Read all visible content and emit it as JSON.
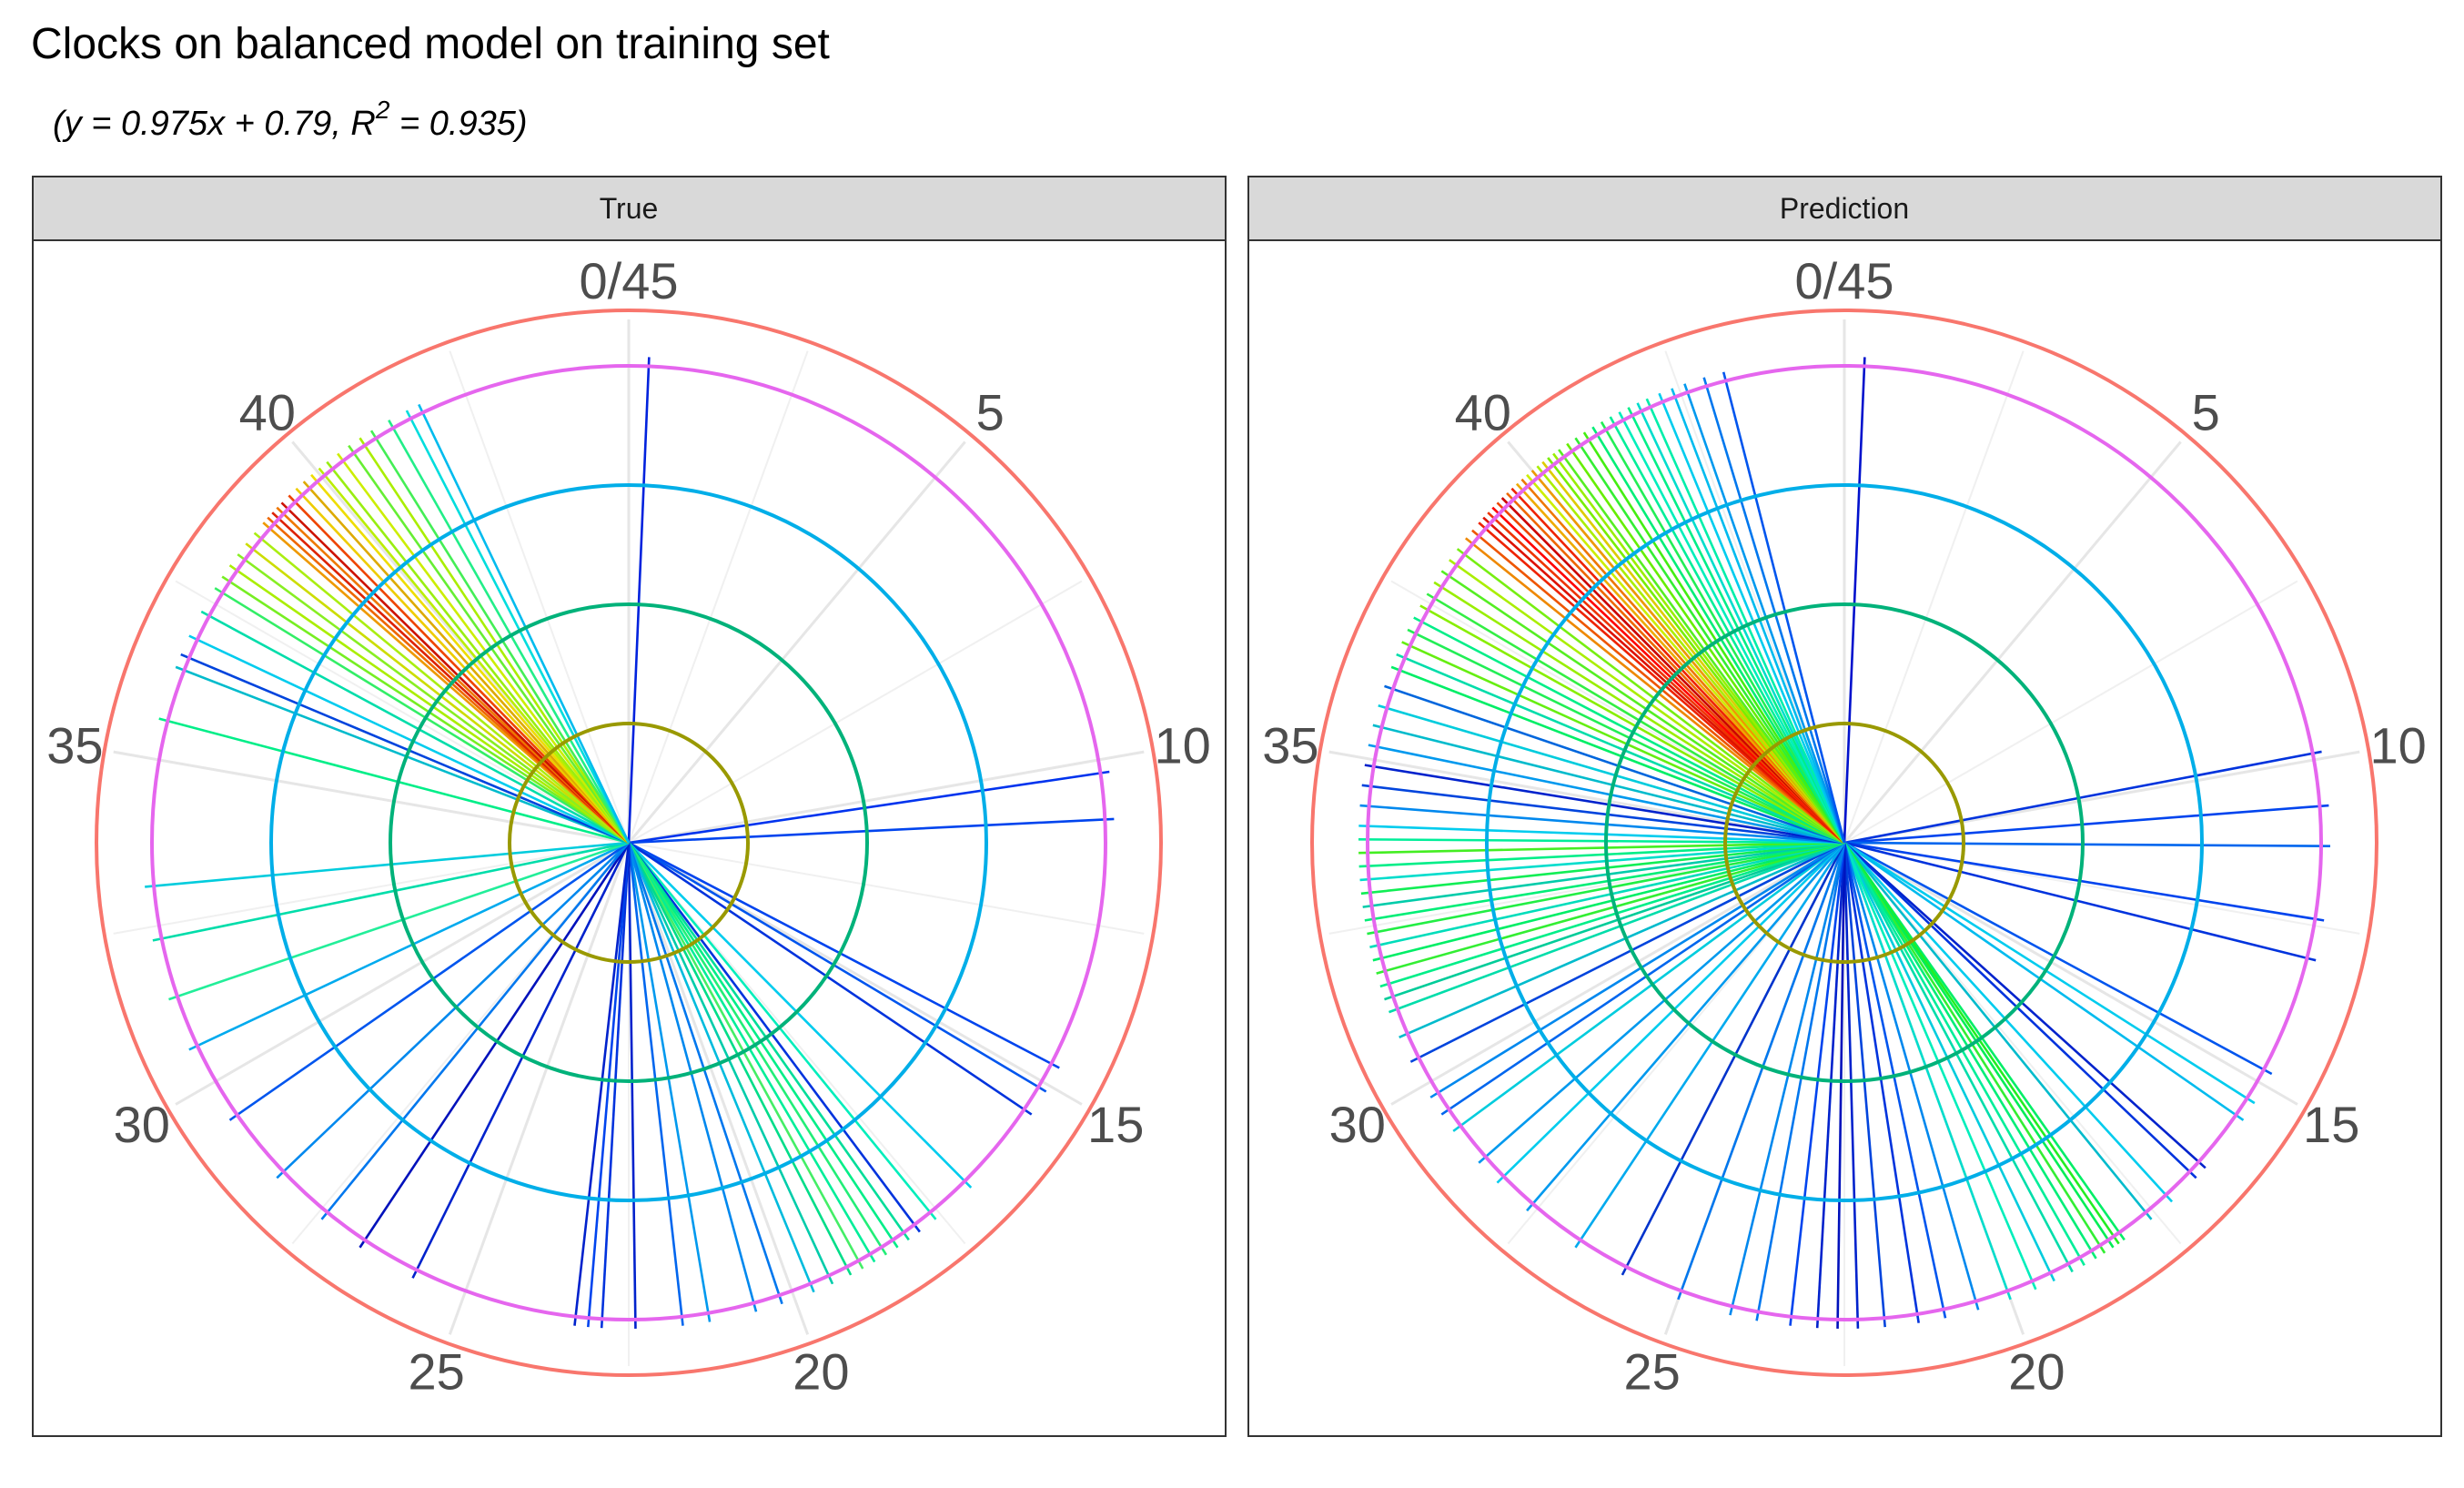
{
  "chart_data": {
    "type": "polar-line",
    "title": "Clocks on balanced model on training set",
    "subtitle": {
      "prefix": "(y = 0.975x + 0.79, R",
      "sup": "2",
      "suffix": " = 0.935)"
    },
    "theta_range": [
      0,
      45
    ],
    "theta_ticks": [
      "0/45",
      "5",
      "10",
      "15",
      "20",
      "25",
      "30",
      "35",
      "40"
    ],
    "ring_colors": [
      "#999900",
      "#00b27a",
      "#00aee8",
      "#e566ee",
      "#f8766d"
    ],
    "panels": [
      {
        "label": "True",
        "rays": [
          {
            "t": 0.3,
            "r": 4,
            "c": "#0022dd"
          },
          {
            "t": 10.2,
            "r": 4,
            "c": "#0033ee"
          },
          {
            "t": 10.9,
            "r": 4,
            "c": "#0044ee"
          },
          {
            "t": 14.7,
            "r": 4,
            "c": "#0044ee"
          },
          {
            "t": 15.1,
            "r": 4,
            "c": "#0055ee"
          },
          {
            "t": 15.5,
            "r": 4,
            "c": "#0033dd"
          },
          {
            "t": 16.9,
            "r": 4,
            "c": "#00ccee"
          },
          {
            "t": 17.6,
            "r": 4,
            "c": "#00eebb"
          },
          {
            "t": 17.9,
            "r": 4,
            "c": "#0033dd"
          },
          {
            "t": 18.1,
            "r": 4,
            "c": "#00dd99"
          },
          {
            "t": 18.3,
            "r": 4,
            "c": "#00ee88"
          },
          {
            "t": 18.5,
            "r": 4,
            "c": "#22ee77"
          },
          {
            "t": 18.7,
            "r": 4,
            "c": "#00ee99"
          },
          {
            "t": 18.9,
            "r": 4,
            "c": "#44ee66"
          },
          {
            "t": 19.1,
            "r": 4,
            "c": "#00dd88"
          },
          {
            "t": 19.4,
            "r": 4,
            "c": "#00ccaa"
          },
          {
            "t": 19.7,
            "r": 4,
            "c": "#00bbdd"
          },
          {
            "t": 20.2,
            "r": 4,
            "c": "#0077ee"
          },
          {
            "t": 20.6,
            "r": 4,
            "c": "#0088ee"
          },
          {
            "t": 21.3,
            "r": 4,
            "c": "#0099ee"
          },
          {
            "t": 21.7,
            "r": 4,
            "c": "#0066ee"
          },
          {
            "t": 22.4,
            "r": 4,
            "c": "#0022cc"
          },
          {
            "t": 22.9,
            "r": 4,
            "c": "#0033dd"
          },
          {
            "t": 23.1,
            "r": 4,
            "c": "#0044ee"
          },
          {
            "t": 23.3,
            "r": 4,
            "c": "#0022cc"
          },
          {
            "t": 25.8,
            "r": 4,
            "c": "#0022cc"
          },
          {
            "t": 26.7,
            "r": 4,
            "c": "#0011bb"
          },
          {
            "t": 27.4,
            "r": 4,
            "c": "#0077ee"
          },
          {
            "t": 28.3,
            "r": 4,
            "c": "#0088ee"
          },
          {
            "t": 29.4,
            "r": 4,
            "c": "#0055ee"
          },
          {
            "t": 30.6,
            "r": 4,
            "c": "#00aaee"
          },
          {
            "t": 31.4,
            "r": 4,
            "c": "#22ee99"
          },
          {
            "t": 32.3,
            "r": 4,
            "c": "#00ddaa"
          },
          {
            "t": 33.1,
            "r": 4,
            "c": "#00ccdd"
          },
          {
            "t": 35.6,
            "r": 4,
            "c": "#00ee88"
          },
          {
            "t": 36.4,
            "r": 4,
            "c": "#00bbcc"
          },
          {
            "t": 36.6,
            "r": 4,
            "c": "#0044dd"
          },
          {
            "t": 36.9,
            "r": 4,
            "c": "#00ccee"
          },
          {
            "t": 37.3,
            "r": 4,
            "c": "#00ddaa"
          },
          {
            "t": 37.7,
            "r": 4,
            "c": "#33ee66"
          },
          {
            "t": 37.9,
            "r": 4,
            "c": "#77ee22"
          },
          {
            "t": 38.1,
            "r": 4,
            "c": "#aaee00"
          },
          {
            "t": 38.3,
            "r": 4,
            "c": "#88ee22"
          },
          {
            "t": 38.5,
            "r": 4,
            "c": "#ccdd00"
          },
          {
            "t": 38.7,
            "r": 4,
            "c": "#aaee11"
          },
          {
            "t": 38.9,
            "r": 4,
            "c": "#ee9900"
          },
          {
            "t": 39.0,
            "r": 4,
            "c": "#ee6600"
          },
          {
            "t": 39.1,
            "r": 4,
            "c": "#dd2200"
          },
          {
            "t": 39.2,
            "r": 4,
            "c": "#ee7700"
          },
          {
            "t": 39.3,
            "r": 4,
            "c": "#cc1100"
          },
          {
            "t": 39.45,
            "r": 4,
            "c": "#ee4400"
          },
          {
            "t": 39.6,
            "r": 4,
            "c": "#eecc00"
          },
          {
            "t": 39.75,
            "r": 4,
            "c": "#ddaa00"
          },
          {
            "t": 39.9,
            "r": 4,
            "c": "#eedd00"
          },
          {
            "t": 40.05,
            "r": 4,
            "c": "#bbee00"
          },
          {
            "t": 40.2,
            "r": 4,
            "c": "#99ee11"
          },
          {
            "t": 40.4,
            "r": 4,
            "c": "#ccee00"
          },
          {
            "t": 40.6,
            "r": 4,
            "c": "#66ee33"
          },
          {
            "t": 40.8,
            "r": 4,
            "c": "#aaee00"
          },
          {
            "t": 41.0,
            "r": 4,
            "c": "#44ee55"
          },
          {
            "t": 41.3,
            "r": 4,
            "c": "#22ee88"
          },
          {
            "t": 41.6,
            "r": 4,
            "c": "#00dddd"
          },
          {
            "t": 41.8,
            "r": 4,
            "c": "#00bbee"
          }
        ]
      },
      {
        "label": "Prediction",
        "rays": [
          {
            "t": 0.3,
            "r": 4,
            "c": "#0011cc"
          },
          {
            "t": 9.9,
            "r": 4,
            "c": "#0033dd"
          },
          {
            "t": 10.7,
            "r": 4,
            "c": "#0044ee"
          },
          {
            "t": 11.3,
            "r": 4,
            "c": "#0066ee"
          },
          {
            "t": 12.4,
            "r": 4,
            "c": "#0044ee"
          },
          {
            "t": 13.0,
            "r": 4,
            "c": "#0033dd"
          },
          {
            "t": 14.8,
            "r": 4,
            "c": "#0055ee"
          },
          {
            "t": 15.3,
            "r": 4,
            "c": "#00ccee"
          },
          {
            "t": 15.6,
            "r": 4,
            "c": "#00bbee"
          },
          {
            "t": 16.5,
            "r": 4,
            "c": "#0022cc"
          },
          {
            "t": 16.7,
            "r": 4,
            "c": "#0033dd"
          },
          {
            "t": 17.2,
            "r": 4,
            "c": "#00ccee"
          },
          {
            "t": 17.6,
            "r": 4,
            "c": "#00bbcc"
          },
          {
            "t": 18.1,
            "r": 4,
            "c": "#00ee66"
          },
          {
            "t": 18.2,
            "r": 4,
            "c": "#22ee22"
          },
          {
            "t": 18.3,
            "r": 4,
            "c": "#00ee55"
          },
          {
            "t": 18.45,
            "r": 4,
            "c": "#33ee33"
          },
          {
            "t": 18.6,
            "r": 4,
            "c": "#00ee77"
          },
          {
            "t": 18.8,
            "r": 4,
            "c": "#00ee99"
          },
          {
            "t": 19.0,
            "r": 4,
            "c": "#00ddaa"
          },
          {
            "t": 19.3,
            "r": 4,
            "c": "#00ccdd"
          },
          {
            "t": 19.6,
            "r": 4,
            "c": "#00eebb"
          },
          {
            "t": 20.0,
            "r": 4,
            "c": "#00ddcc"
          },
          {
            "t": 20.5,
            "r": 4,
            "c": "#0088ee"
          },
          {
            "t": 21.0,
            "r": 4,
            "c": "#0055ee"
          },
          {
            "t": 21.4,
            "r": 4,
            "c": "#0033dd"
          },
          {
            "t": 21.9,
            "r": 4,
            "c": "#0044dd"
          },
          {
            "t": 22.3,
            "r": 4,
            "c": "#0022cc"
          },
          {
            "t": 22.6,
            "r": 4,
            "c": "#0011bb"
          },
          {
            "t": 22.9,
            "r": 4,
            "c": "#0022cc"
          },
          {
            "t": 23.3,
            "r": 4,
            "c": "#0044ee"
          },
          {
            "t": 23.8,
            "r": 4,
            "c": "#0077ee"
          },
          {
            "t": 24.2,
            "r": 4,
            "c": "#0088ee"
          },
          {
            "t": 25.0,
            "r": 4,
            "c": "#0077ee"
          },
          {
            "t": 25.9,
            "r": 4,
            "c": "#0033cc"
          },
          {
            "t": 26.7,
            "r": 4,
            "c": "#00aaee"
          },
          {
            "t": 27.6,
            "r": 4,
            "c": "#0099ee"
          },
          {
            "t": 28.2,
            "r": 4,
            "c": "#00ccee"
          },
          {
            "t": 28.6,
            "r": 4,
            "c": "#0099ee"
          },
          {
            "t": 29.2,
            "r": 4,
            "c": "#00ccdd"
          },
          {
            "t": 29.5,
            "r": 4,
            "c": "#0066ee"
          },
          {
            "t": 29.8,
            "r": 4,
            "c": "#0088ee"
          },
          {
            "t": 30.4,
            "r": 4,
            "c": "#0044dd"
          },
          {
            "t": 30.8,
            "r": 4,
            "c": "#00bbcc"
          },
          {
            "t": 31.2,
            "r": 4,
            "c": "#00ddaa"
          },
          {
            "t": 31.4,
            "r": 4,
            "c": "#00cc99"
          },
          {
            "t": 31.6,
            "r": 4,
            "c": "#00ee88"
          },
          {
            "t": 31.8,
            "r": 4,
            "c": "#33ee33"
          },
          {
            "t": 32.0,
            "r": 4,
            "c": "#00ee66"
          },
          {
            "t": 32.2,
            "r": 4,
            "c": "#00ddbb"
          },
          {
            "t": 32.4,
            "r": 4,
            "c": "#22ee44"
          },
          {
            "t": 32.6,
            "r": 4,
            "c": "#00ee77"
          },
          {
            "t": 32.8,
            "r": 4,
            "c": "#00ccaa"
          },
          {
            "t": 33.0,
            "r": 4,
            "c": "#11ee55"
          },
          {
            "t": 33.2,
            "r": 4,
            "c": "#00ddcc"
          },
          {
            "t": 33.4,
            "r": 4,
            "c": "#00ee88"
          },
          {
            "t": 33.6,
            "r": 4,
            "c": "#44ee22"
          },
          {
            "t": 33.8,
            "r": 4,
            "c": "#00ee99"
          },
          {
            "t": 34.0,
            "r": 4,
            "c": "#00ccee"
          },
          {
            "t": 34.3,
            "r": 4,
            "c": "#0088ee"
          },
          {
            "t": 34.6,
            "r": 4,
            "c": "#0044dd"
          },
          {
            "t": 34.9,
            "r": 4,
            "c": "#0022cc"
          },
          {
            "t": 35.2,
            "r": 4,
            "c": "#0099ee"
          },
          {
            "t": 35.5,
            "r": 4,
            "c": "#00bbcc"
          },
          {
            "t": 35.8,
            "r": 4,
            "c": "#00ccdd"
          },
          {
            "t": 36.1,
            "r": 4,
            "c": "#0066dd"
          },
          {
            "t": 36.4,
            "r": 4,
            "c": "#00ee66"
          },
          {
            "t": 36.6,
            "r": 4,
            "c": "#00ddaa"
          },
          {
            "t": 36.8,
            "r": 4,
            "c": "#66ee11"
          },
          {
            "t": 37.0,
            "r": 4,
            "c": "#22ee55"
          },
          {
            "t": 37.2,
            "r": 4,
            "c": "#00ee88"
          },
          {
            "t": 37.4,
            "r": 4,
            "c": "#88ee00"
          },
          {
            "t": 37.6,
            "r": 4,
            "c": "#33ee44"
          },
          {
            "t": 37.8,
            "r": 4,
            "c": "#99ee00"
          },
          {
            "t": 38.0,
            "r": 4,
            "c": "#55ee22"
          },
          {
            "t": 38.2,
            "r": 4,
            "c": "#aaee00"
          },
          {
            "t": 38.4,
            "r": 4,
            "c": "#77ee11"
          },
          {
            "t": 38.6,
            "r": 4,
            "c": "#ee8800"
          },
          {
            "t": 38.75,
            "r": 4,
            "c": "#ee5500"
          },
          {
            "t": 38.9,
            "r": 4,
            "c": "#ee2200"
          },
          {
            "t": 39.0,
            "r": 4,
            "c": "#dd1100"
          },
          {
            "t": 39.1,
            "r": 4,
            "c": "#ee3300"
          },
          {
            "t": 39.2,
            "r": 4,
            "c": "#ff0000"
          },
          {
            "t": 39.3,
            "r": 4,
            "c": "#ee4400"
          },
          {
            "t": 39.4,
            "r": 4,
            "c": "#cc0000"
          },
          {
            "t": 39.5,
            "r": 4,
            "c": "#ee6600"
          },
          {
            "t": 39.6,
            "r": 4,
            "c": "#ee2200"
          },
          {
            "t": 39.7,
            "r": 4,
            "c": "#eeaa00"
          },
          {
            "t": 39.8,
            "r": 4,
            "c": "#ee7700"
          },
          {
            "t": 39.9,
            "r": 4,
            "c": "#ccee00"
          },
          {
            "t": 40.0,
            "r": 4,
            "c": "#ee9900"
          },
          {
            "t": 40.1,
            "r": 4,
            "c": "#aaee00"
          },
          {
            "t": 40.2,
            "r": 4,
            "c": "#ddcc00"
          },
          {
            "t": 40.3,
            "r": 4,
            "c": "#77ee00"
          },
          {
            "t": 40.4,
            "r": 4,
            "c": "#99ee00"
          },
          {
            "t": 40.5,
            "r": 4,
            "c": "#55ee22"
          },
          {
            "t": 40.65,
            "r": 4,
            "c": "#66ee00"
          },
          {
            "t": 40.8,
            "r": 4,
            "c": "#33ee33"
          },
          {
            "t": 40.95,
            "r": 4,
            "c": "#44ee11"
          },
          {
            "t": 41.1,
            "r": 4,
            "c": "#00ee77"
          },
          {
            "t": 41.25,
            "r": 4,
            "c": "#22ee55"
          },
          {
            "t": 41.4,
            "r": 4,
            "c": "#00ee99"
          },
          {
            "t": 41.55,
            "r": 4,
            "c": "#00eebb"
          },
          {
            "t": 41.7,
            "r": 4,
            "c": "#00ee88"
          },
          {
            "t": 41.85,
            "r": 4,
            "c": "#00ddcc"
          },
          {
            "t": 42.0,
            "r": 4,
            "c": "#00eeaa"
          },
          {
            "t": 42.2,
            "r": 4,
            "c": "#00ccee"
          },
          {
            "t": 42.4,
            "r": 4,
            "c": "#00bbee"
          },
          {
            "t": 42.6,
            "r": 4,
            "c": "#0099ee"
          },
          {
            "t": 42.9,
            "r": 4,
            "c": "#0077ee"
          },
          {
            "t": 43.2,
            "r": 4,
            "c": "#0055ee"
          }
        ]
      }
    ]
  }
}
